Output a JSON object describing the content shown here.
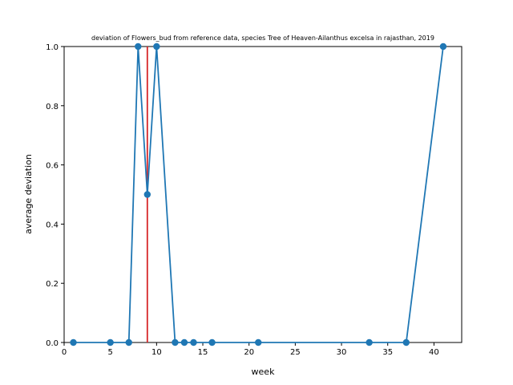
{
  "chart_data": {
    "type": "line",
    "title": "deviation of Flowers_bud from reference data, species Tree of Heaven-Ailanthus excelsa in rajasthan, 2019",
    "xlabel": "week",
    "ylabel": "average deviation",
    "xlim": [
      0,
      43
    ],
    "ylim": [
      0,
      1.0
    ],
    "xticks": [
      0,
      5,
      10,
      15,
      20,
      25,
      30,
      35,
      40
    ],
    "yticks": [
      0.0,
      0.2,
      0.4,
      0.6,
      0.8,
      1.0
    ],
    "xtick_labels": [
      "0",
      "5",
      "10",
      "15",
      "20",
      "25",
      "30",
      "35",
      "40"
    ],
    "ytick_labels": [
      "0.0",
      "0.2",
      "0.4",
      "0.6",
      "0.8",
      "1.0"
    ],
    "grid": false,
    "series": [
      {
        "color": "#1f77b4",
        "x": [
          1,
          5,
          7,
          8,
          9,
          10,
          12,
          13,
          14,
          16,
          21,
          33,
          37,
          41
        ],
        "y": [
          0,
          0,
          0,
          1.0,
          0.5,
          1.0,
          0,
          0,
          0,
          0,
          0,
          0,
          0,
          1.0
        ]
      }
    ],
    "vline": {
      "x": 9,
      "color": "#d62728"
    }
  }
}
